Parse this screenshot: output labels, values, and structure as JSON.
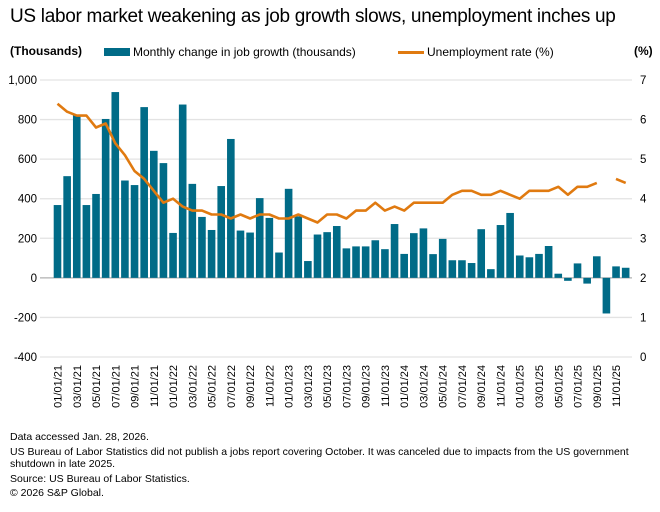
{
  "chart_data": {
    "type": "bar+line",
    "title": "US labor market weakening as job growth slows, unemployment inches up",
    "left_axis_unit": "(Thousands)",
    "right_axis_unit": "(%)",
    "left_ylim": [
      -400,
      1000
    ],
    "left_ticks": [
      1000,
      800,
      600,
      400,
      200,
      0,
      -200,
      -400
    ],
    "left_tick_labels": [
      "1,000",
      "800",
      "600",
      "400",
      "200",
      "0",
      "-200",
      "-400"
    ],
    "right_ylim": [
      0,
      7
    ],
    "right_ticks": [
      7,
      6,
      5,
      4,
      3,
      2,
      1,
      0
    ],
    "grid": true,
    "legend_placement": "top",
    "x_tick_labels": [
      "01/01/21",
      "03/01/21",
      "05/01/21",
      "07/01/21",
      "09/01/21",
      "11/01/21",
      "01/01/22",
      "03/01/22",
      "05/01/22",
      "07/01/22",
      "09/01/22",
      "11/01/22",
      "01/01/23",
      "03/01/23",
      "05/01/23",
      "07/01/23",
      "09/01/23",
      "11/01/23",
      "01/01/24",
      "03/01/24",
      "05/01/24",
      "07/01/24",
      "09/01/24",
      "11/01/24",
      "01/01/25",
      "03/01/25",
      "05/01/25",
      "07/01/25",
      "09/01/25",
      "11/01/25"
    ],
    "x_start": "2021-01",
    "x_end": "2025-12",
    "series": [
      {
        "name": "Monthly change in job growth (thousands)",
        "type": "bar",
        "axis": "left",
        "color": "#006b87",
        "values": [
          368,
          514,
          825,
          368,
          424,
          803,
          939,
          492,
          469,
          863,
          642,
          580,
          227,
          876,
          475,
          308,
          242,
          464,
          702,
          239,
          229,
          403,
          303,
          128,
          450,
          311,
          85,
          219,
          231,
          262,
          149,
          159,
          159,
          190,
          145,
          272,
          121,
          226,
          250,
          120,
          197,
          89,
          89,
          75,
          246,
          44,
          267,
          328,
          113,
          104,
          121,
          161,
          21,
          -15,
          73,
          -29,
          109,
          -180,
          58,
          51
        ]
      },
      {
        "name": "Unemployment rate (%)",
        "type": "line",
        "axis": "right",
        "color": "#e07a10",
        "values": [
          6.4,
          6.2,
          6.1,
          6.1,
          5.8,
          5.9,
          5.4,
          5.1,
          4.7,
          4.5,
          4.2,
          3.9,
          4.0,
          3.8,
          3.7,
          3.7,
          3.6,
          3.6,
          3.5,
          3.6,
          3.5,
          3.6,
          3.6,
          3.5,
          3.5,
          3.6,
          3.5,
          3.4,
          3.6,
          3.6,
          3.5,
          3.7,
          3.7,
          3.9,
          3.7,
          3.8,
          3.7,
          3.9,
          3.9,
          3.9,
          3.9,
          4.1,
          4.2,
          4.2,
          4.1,
          4.1,
          4.2,
          4.1,
          4.0,
          4.2,
          4.2,
          4.2,
          4.3,
          4.1,
          4.3,
          4.3,
          4.4,
          null,
          4.5,
          4.4
        ]
      }
    ]
  },
  "footer": {
    "accessed": "Data accessed Jan. 28, 2026.",
    "note": "US Bureau of Labor Statistics did not publish a jobs report covering October. It was canceled due to impacts from the US government shutdown in late 2025.",
    "source": "Source: US Bureau of Labor Statistics.",
    "copyright": "© 2026 S&P Global."
  }
}
